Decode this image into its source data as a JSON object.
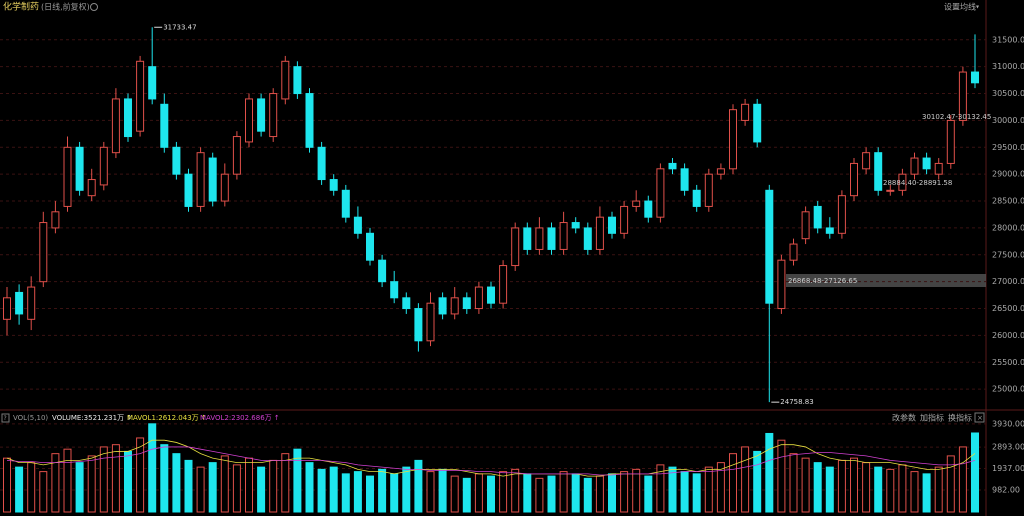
{
  "chart_data": {
    "type": "candlestick",
    "title": "化学制药",
    "subtitle": "(日线,前复权)",
    "ma_setting": "设置均线",
    "colors": {
      "up": "#e0504a",
      "down": "#1ee6ee"
    },
    "ylim": [
      24650,
      31980
    ],
    "yticks": [
      {
        "value": 25000,
        "label": "25000.00"
      },
      {
        "value": 25500,
        "label": "25500.00"
      },
      {
        "value": 26000,
        "label": "26000.00"
      },
      {
        "value": 26500,
        "label": "26500.00"
      },
      {
        "value": 27000,
        "label": "27000.00"
      },
      {
        "value": 27500,
        "label": "27500.00"
      },
      {
        "value": 28000,
        "label": "28000.00"
      },
      {
        "value": 28500,
        "label": "28500.00"
      },
      {
        "value": 29000,
        "label": "29000.00"
      },
      {
        "value": 29500,
        "label": "29500.00"
      },
      {
        "value": 30000,
        "label": "30000.00"
      },
      {
        "value": 30500,
        "label": "30500.00"
      },
      {
        "value": 31000,
        "label": "31000.00"
      },
      {
        "value": 31500,
        "label": "31500.00"
      }
    ],
    "grid": true,
    "open": [
      26300,
      26800,
      26300,
      27000,
      28000,
      28400,
      29500,
      28600,
      28800,
      29400,
      30400,
      29800,
      31000,
      30300,
      29500,
      29000,
      28400,
      29300,
      28500,
      29000,
      29600,
      30400,
      29700,
      30400,
      31000,
      30500,
      29500,
      28900,
      28700,
      28200,
      27900,
      27400,
      27000,
      26700,
      26500,
      25900,
      26700,
      26400,
      26700,
      26500,
      26900,
      26600,
      27300,
      28000,
      27600,
      28000,
      27600,
      28100,
      28000,
      27600,
      28200,
      27900,
      28400,
      28500,
      28200,
      29200,
      29100,
      28700,
      28400,
      29000,
      29100,
      30000,
      30300,
      28700,
      26500,
      27400,
      27800,
      28400,
      28000,
      27900,
      28600,
      29100,
      29400,
      28700,
      28700,
      29000,
      29300,
      29000,
      29200,
      30000,
      30900
    ],
    "high": [
      26900,
      26950,
      27100,
      28300,
      28500,
      29700,
      29600,
      29100,
      29600,
      30600,
      30500,
      31200,
      31733.47,
      30500,
      29600,
      29100,
      29500,
      29400,
      29200,
      29800,
      30500,
      30500,
      30600,
      31200,
      31100,
      30600,
      29600,
      29000,
      28800,
      28400,
      28000,
      27500,
      27200,
      26800,
      26600,
      26800,
      26800,
      26900,
      26800,
      27000,
      27000,
      27400,
      28100,
      28100,
      28200,
      28100,
      28300,
      28200,
      28100,
      28400,
      28300,
      28500,
      28700,
      28600,
      29200,
      29300,
      29200,
      28800,
      29100,
      29200,
      30300,
      30400,
      30400,
      28800,
      27500,
      27800,
      28400,
      28500,
      28200,
      28700,
      29300,
      29500,
      29500,
      28800,
      29100,
      29400,
      29400,
      29300,
      30100,
      31000,
      31600
    ],
    "low": [
      26000,
      26200,
      26100,
      26900,
      27900,
      28300,
      28600,
      28500,
      28700,
      29300,
      29600,
      29700,
      30300,
      29400,
      28900,
      28300,
      28300,
      28400,
      28400,
      28900,
      29500,
      29700,
      29600,
      30300,
      30400,
      29400,
      28800,
      28600,
      28100,
      27800,
      27300,
      26900,
      26600,
      26400,
      25700,
      25800,
      26300,
      26300,
      26400,
      26400,
      26500,
      26500,
      27200,
      27500,
      27500,
      27500,
      27500,
      27900,
      27500,
      27500,
      27800,
      27800,
      28300,
      28100,
      28100,
      29000,
      28600,
      28300,
      28300,
      28900,
      29000,
      29900,
      29500,
      24758.83,
      26400,
      27300,
      27700,
      27900,
      27800,
      27800,
      28500,
      29000,
      28600,
      28600,
      28600,
      28900,
      29000,
      28900,
      29100,
      29900,
      30600
    ],
    "close": [
      26700,
      26400,
      26900,
      28100,
      28300,
      29500,
      28700,
      28900,
      29500,
      30400,
      29700,
      31100,
      30400,
      29500,
      29000,
      28400,
      29400,
      28500,
      29000,
      29700,
      30400,
      29800,
      30500,
      31100,
      30500,
      29500,
      28900,
      28700,
      28200,
      27900,
      27400,
      27000,
      26700,
      26500,
      25900,
      26600,
      26400,
      26700,
      26500,
      26900,
      26600,
      27300,
      28000,
      27600,
      28000,
      27600,
      28100,
      28000,
      27600,
      28200,
      27900,
      28400,
      28500,
      28200,
      29100,
      29100,
      28700,
      28400,
      29000,
      29100,
      30200,
      30300,
      29600,
      26600,
      27400,
      27700,
      28300,
      28000,
      27900,
      28600,
      29200,
      29400,
      28700,
      28700,
      29000,
      29300,
      29100,
      29200,
      30000,
      30900,
      30700
    ],
    "annotations": [
      {
        "text": "31733.47",
        "index": 12,
        "at": "high"
      },
      {
        "text": "24758.83",
        "index": 63,
        "at": "low"
      },
      {
        "text": "30102.47-30132.45"
      },
      {
        "text": "28884.40-28891.58"
      },
      {
        "text": "26868.48-27126.65"
      }
    ],
    "volume": {
      "label": "VOL(5,10)",
      "buttons": [
        "改参数",
        "加指标",
        "换指标"
      ],
      "ylim": [
        0,
        4100
      ],
      "yticks": [
        {
          "value": 982,
          "label": "982.00"
        },
        {
          "value": 1937,
          "label": "1937.00"
        },
        {
          "value": 2893,
          "label": "2893.00"
        },
        {
          "value": 3930,
          "label": "3930.00"
        }
      ],
      "series": [
        {
          "name": "VOLUME:3521.231万 ↑",
          "color": "#e8e8e8",
          "values": [
            2400,
            2000,
            2200,
            1800,
            2600,
            2800,
            2200,
            2500,
            2900,
            3000,
            2700,
            3300,
            3930,
            3000,
            2600,
            2300,
            2000,
            2200,
            2500,
            2100,
            2400,
            2000,
            2300,
            2600,
            2800,
            2200,
            1900,
            2000,
            1700,
            1800,
            1600,
            1900,
            1700,
            2000,
            2300,
            1800,
            1900,
            1600,
            1500,
            1700,
            1600,
            1800,
            1900,
            1700,
            1500,
            1600,
            1800,
            1700,
            1500,
            1600,
            1700,
            1800,
            1900,
            1600,
            2100,
            2000,
            1800,
            1700,
            2000,
            2200,
            2600,
            2900,
            2700,
            3500,
            3200,
            2600,
            2400,
            2200,
            2000,
            2300,
            2400,
            2200,
            2000,
            1900,
            2100,
            1800,
            1700,
            2000,
            2500,
            2900,
            3521.231
          ]
        },
        {
          "name": "MAVOL1:2612.043万 ↑",
          "color": "#e8e040",
          "values": [
            2400,
            2200,
            2200,
            2100,
            2200,
            2300,
            2300,
            2400,
            2600,
            2700,
            2700,
            2900,
            3200,
            3200,
            3100,
            2900,
            2600,
            2400,
            2300,
            2200,
            2200,
            2200,
            2300,
            2300,
            2400,
            2400,
            2300,
            2200,
            2100,
            1900,
            1800,
            1800,
            1700,
            1800,
            1900,
            1900,
            1900,
            1900,
            1800,
            1700,
            1700,
            1600,
            1700,
            1700,
            1700,
            1700,
            1700,
            1700,
            1600,
            1600,
            1700,
            1700,
            1700,
            1700,
            1800,
            1900,
            1900,
            1800,
            1900,
            1900,
            2100,
            2300,
            2500,
            2800,
            3000,
            3000,
            2900,
            2600,
            2400,
            2300,
            2300,
            2200,
            2200,
            2200,
            2100,
            2000,
            1900,
            1900,
            2000,
            2200,
            2612.043
          ]
        },
        {
          "name": "MAVOL2:2302.686万 ↑",
          "color": "#d040d0",
          "values": [
            2300,
            2250,
            2250,
            2200,
            2200,
            2200,
            2250,
            2300,
            2400,
            2450,
            2500,
            2600,
            2800,
            2900,
            2900,
            2900,
            2800,
            2700,
            2600,
            2500,
            2400,
            2300,
            2300,
            2300,
            2300,
            2300,
            2300,
            2250,
            2200,
            2100,
            2050,
            2000,
            1950,
            1900,
            1900,
            1850,
            1850,
            1850,
            1850,
            1800,
            1800,
            1750,
            1750,
            1700,
            1700,
            1700,
            1700,
            1700,
            1700,
            1650,
            1650,
            1700,
            1700,
            1700,
            1700,
            1750,
            1800,
            1800,
            1800,
            1850,
            1900,
            2000,
            2100,
            2300,
            2450,
            2550,
            2600,
            2650,
            2650,
            2600,
            2550,
            2500,
            2400,
            2300,
            2250,
            2200,
            2150,
            2100,
            2100,
            2150,
            2302.686
          ]
        }
      ]
    }
  }
}
